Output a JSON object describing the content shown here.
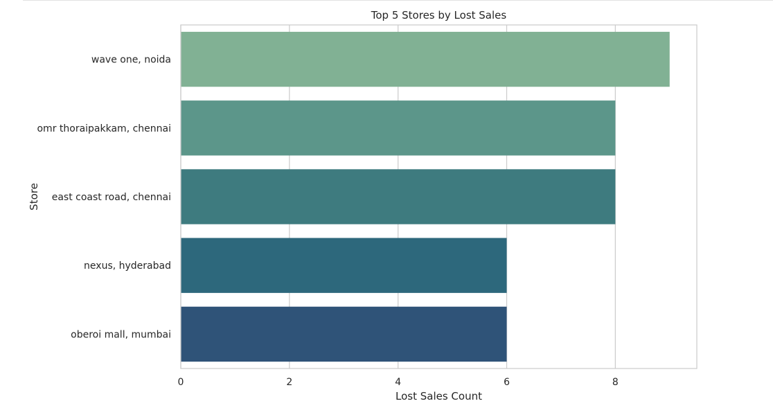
{
  "chart_data": {
    "type": "bar",
    "orientation": "horizontal",
    "title": "Top 5 Stores by Lost Sales",
    "xlabel": "Lost Sales Count",
    "ylabel": "Store",
    "categories": [
      "wave one, noida",
      "omr thoraipakkam, chennai",
      "east coast road, chennai",
      "nexus, hyderabad",
      "oberoi mall, mumbai"
    ],
    "values": [
      9,
      8,
      8,
      6,
      6
    ],
    "colors": [
      "#81b194",
      "#5c968a",
      "#3e7b7f",
      "#2d687c",
      "#2f5378"
    ],
    "xlim": [
      0,
      9.5
    ],
    "xticks": [
      0,
      2,
      4,
      6,
      8
    ],
    "grid": "vertical"
  }
}
